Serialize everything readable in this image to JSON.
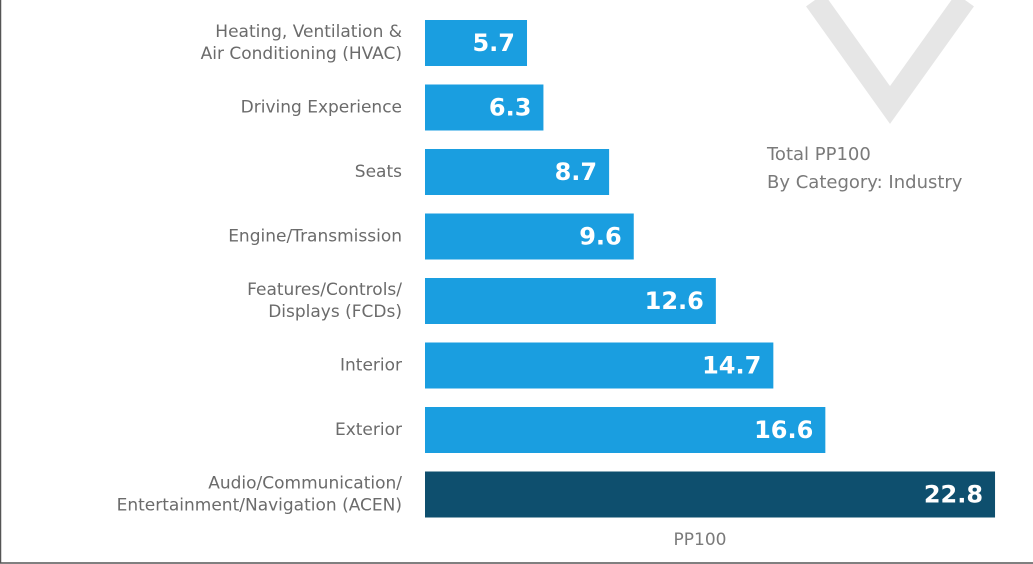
{
  "chart_data": {
    "type": "bar",
    "orientation": "horizontal",
    "annotation": "Total PP100\nBy Category: Industry",
    "x_label": "PP100",
    "categories": [
      "Heating, Ventilation &\nAir Conditioning (HVAC)",
      "Driving Experience",
      "Seats",
      "Engine/Transmission",
      "Features/Controls/\nDisplays (FCDs)",
      "Interior",
      "Exterior",
      "Audio/Communication/\nEntertainment/Navigation (ACEN)"
    ],
    "values": [
      5.7,
      6.3,
      8.7,
      9.6,
      12.6,
      14.7,
      16.6,
      22.8
    ],
    "colors": [
      "#1a9ee0",
      "#1a9ee0",
      "#1a9ee0",
      "#1a9ee0",
      "#1a9ee0",
      "#1a9ee0",
      "#1a9ee0",
      "#0e4f6e"
    ]
  }
}
